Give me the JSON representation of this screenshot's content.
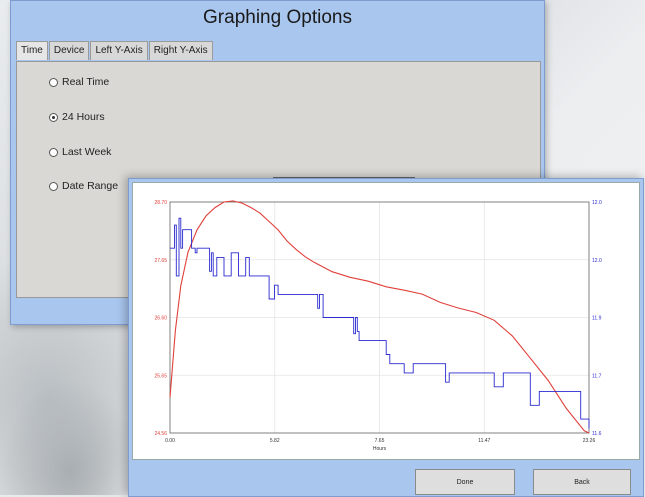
{
  "options_window": {
    "title": "Graphing Options",
    "tabs": [
      "Time",
      "Device",
      "Left Y-Axis",
      "Right Y-Axis"
    ],
    "radio_options": [
      {
        "label": "Real Time",
        "selected": false
      },
      {
        "label": "24 Hours",
        "selected": true
      },
      {
        "label": "Last Week",
        "selected": false
      },
      {
        "label": "Date Range",
        "selected": false
      }
    ]
  },
  "graph_window": {
    "done_label": "Done",
    "back_label": "Back",
    "colors": {
      "left_series": "#e0403a",
      "right_series": "#2a2ad0"
    },
    "chart_data": {
      "type": "line",
      "title": "",
      "xlabel": "Hours",
      "ylabel": "",
      "xlim": [
        0.0,
        23.26
      ],
      "x_ticks": [
        "0.00",
        "5.82",
        "7.65",
        "11.47",
        "23.26"
      ],
      "left_ticks": [
        "28.70",
        "27.65",
        "26.60",
        "25.65",
        "24.56"
      ],
      "right_ticks": [
        "12.0",
        "12.0",
        "11.9",
        "11.7",
        "11.6"
      ],
      "ylim_left": [
        24.56,
        28.7
      ],
      "series": [
        {
          "axis": "left",
          "x": [
            0.0,
            0.3,
            0.6,
            1.0,
            1.5,
            2.0,
            2.5,
            3.0,
            3.5,
            4.0,
            4.5,
            5.0,
            5.5,
            6.0,
            6.5,
            7.0,
            7.5,
            8.0,
            9.0,
            10.0,
            11.0,
            12.0,
            13.0,
            14.0,
            15.0,
            16.0,
            17.0,
            18.0,
            19.0,
            20.0,
            21.0,
            22.0,
            23.0,
            23.26
          ],
          "y": [
            25.2,
            26.4,
            27.2,
            27.8,
            28.2,
            28.45,
            28.6,
            28.7,
            28.72,
            28.68,
            28.6,
            28.5,
            28.35,
            28.2,
            28.0,
            27.85,
            27.72,
            27.62,
            27.45,
            27.35,
            27.28,
            27.18,
            27.12,
            27.05,
            26.9,
            26.8,
            26.72,
            26.58,
            26.3,
            25.9,
            25.5,
            25.0,
            24.6,
            24.56
          ]
        },
        {
          "axis": "right",
          "x": [
            0.0,
            0.25,
            0.35,
            0.5,
            0.6,
            0.7,
            1.2,
            1.4,
            1.5,
            2.2,
            2.3,
            2.4,
            2.6,
            3.0,
            3.4,
            3.8,
            4.2,
            4.4,
            5.2,
            5.5,
            5.8,
            6.0,
            8.0,
            8.2,
            8.3,
            8.5,
            9.5,
            10.0,
            10.2,
            10.3,
            10.4,
            10.5,
            11.5,
            12.0,
            12.2,
            12.8,
            13.0,
            13.5,
            15.0,
            15.3,
            15.5,
            17.5,
            18.0,
            18.5,
            19.5,
            20.0,
            20.5,
            22.5,
            22.8,
            23.0,
            23.26
          ],
          "y": [
            12.42,
            12.52,
            12.3,
            12.55,
            12.42,
            12.5,
            12.42,
            12.4,
            12.42,
            12.32,
            12.4,
            12.3,
            12.38,
            12.3,
            12.4,
            12.3,
            12.38,
            12.3,
            12.3,
            12.2,
            12.26,
            12.22,
            12.22,
            12.16,
            12.22,
            12.12,
            12.12,
            12.12,
            12.05,
            12.12,
            12.06,
            12.02,
            12.02,
            11.96,
            11.92,
            11.92,
            11.88,
            11.92,
            11.92,
            11.84,
            11.88,
            11.88,
            11.82,
            11.88,
            11.88,
            11.74,
            11.8,
            11.8,
            11.68,
            11.68,
            11.64
          ]
        }
      ]
    }
  }
}
